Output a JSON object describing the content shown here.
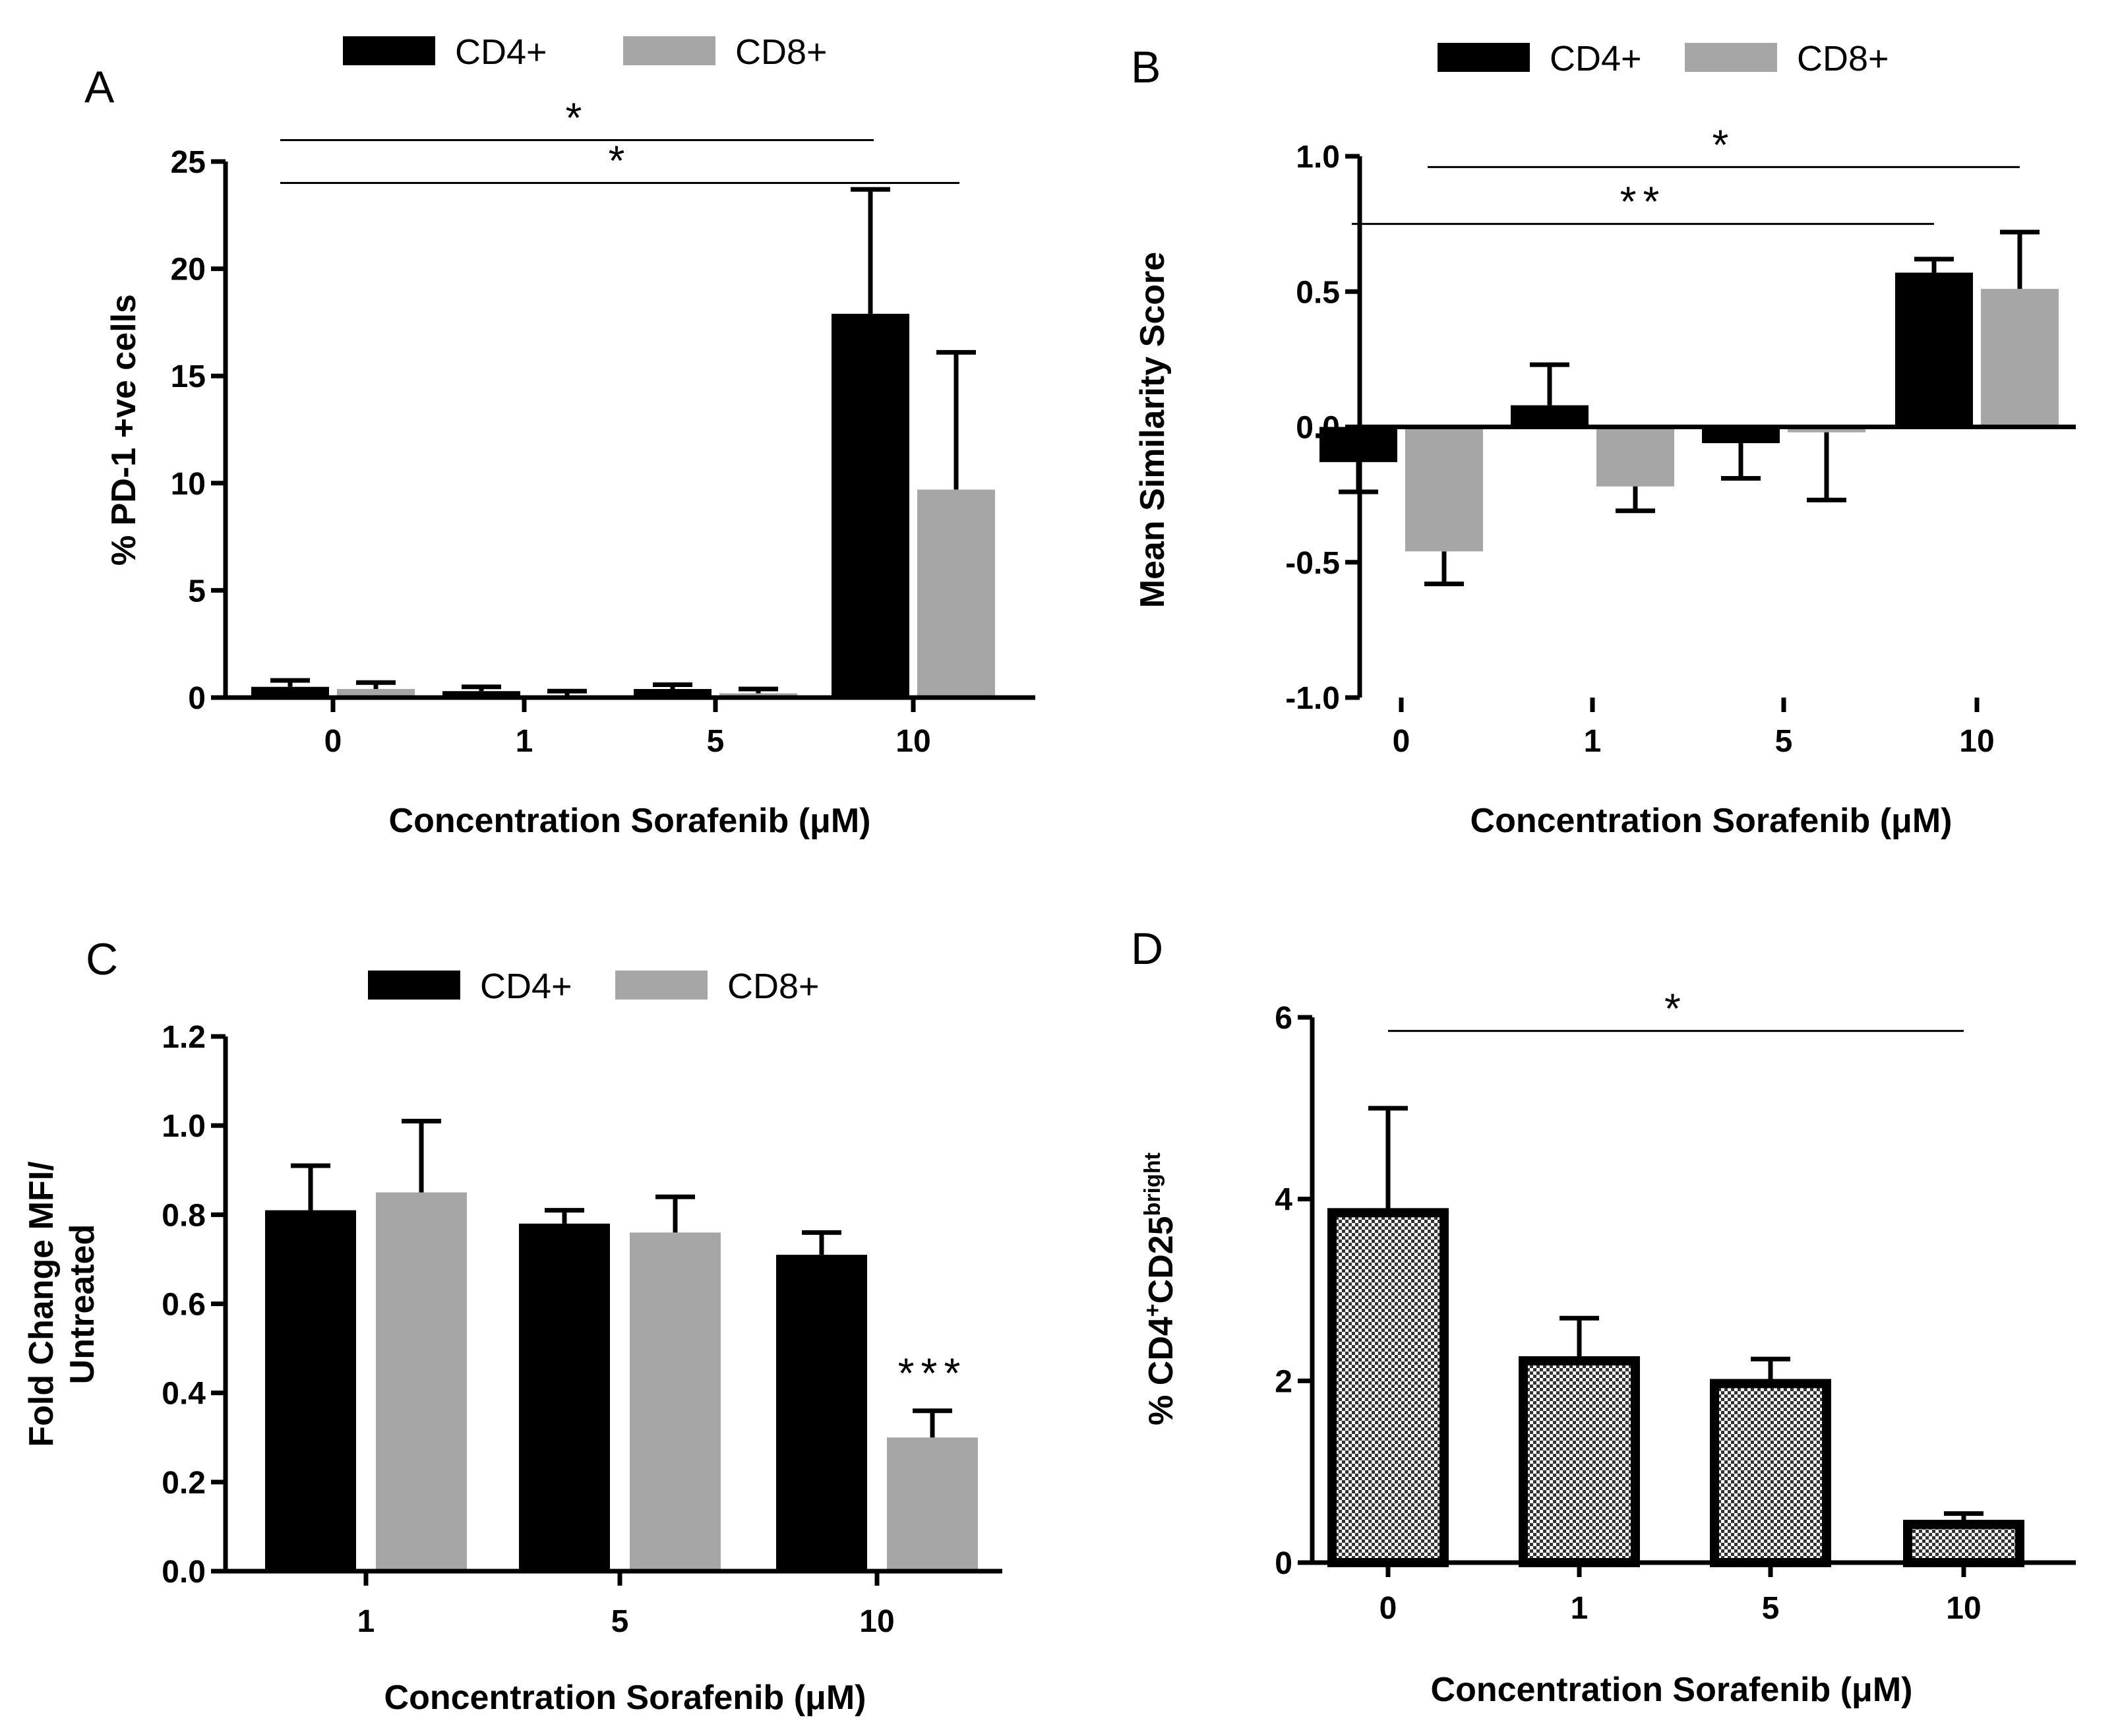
{
  "chart_data": [
    {
      "type": "bar",
      "panel": "A",
      "title": "",
      "xlabel": "Concentration Sorafenib (μM)",
      "ylabel": "% PD-1 +ve cells",
      "categories": [
        "0",
        "1",
        "5",
        "10"
      ],
      "ylim": [
        0,
        25
      ],
      "yticks": [
        0,
        5,
        10,
        15,
        20,
        25
      ],
      "ytick_labels": [
        "0",
        "5",
        "10",
        "15",
        "20",
        "25"
      ],
      "legend": "top",
      "series": [
        {
          "name": "CD4+",
          "color": "#000000",
          "values": [
            0.5,
            0.3,
            0.4,
            17.9
          ],
          "errors": [
            0.3,
            0.2,
            0.2,
            5.8
          ]
        },
        {
          "name": "CD8+",
          "color": "#a6a6a6",
          "values": [
            0.4,
            0.1,
            0.2,
            9.7
          ],
          "errors": [
            0.3,
            0.2,
            0.2,
            6.4
          ]
        }
      ],
      "significance": [
        {
          "label": "*",
          "from_group": 0,
          "to_group": 3,
          "to_series": 0,
          "level": 26.0
        },
        {
          "label": "*",
          "from_group": 0,
          "to_group": 3,
          "to_series": 1,
          "level": 24.0
        }
      ]
    },
    {
      "type": "bar",
      "panel": "B",
      "title": "",
      "xlabel": "Concentration Sorafenib (μM)",
      "ylabel": "Mean Similarity Score",
      "categories": [
        "0",
        "1",
        "5",
        "10"
      ],
      "ylim": [
        -1.0,
        1.0
      ],
      "yticks": [
        -1.0,
        -0.5,
        0.0,
        0.5,
        1.0
      ],
      "ytick_labels": [
        "-1.0",
        "-0.5",
        "0.0",
        "0.5",
        "1.0"
      ],
      "legend": "top",
      "series": [
        {
          "name": "CD4+",
          "color": "#000000",
          "values": [
            -0.13,
            0.08,
            -0.06,
            0.57
          ],
          "errors": [
            0.11,
            0.15,
            0.13,
            0.05
          ]
        },
        {
          "name": "CD8+",
          "color": "#a6a6a6",
          "values": [
            -0.46,
            -0.22,
            -0.02,
            0.51
          ],
          "errors": [
            0.12,
            0.09,
            0.25,
            0.21
          ]
        }
      ],
      "significance": [
        {
          "label": "*",
          "from_group": 0,
          "from_series": 1,
          "to_group": 3,
          "to_series": 1,
          "level": 0.96
        },
        {
          "label": "**",
          "from_group": 0,
          "from_series": 0,
          "to_group": 3,
          "to_series": 0,
          "level": 0.75
        }
      ]
    },
    {
      "type": "bar",
      "panel": "C",
      "title": "",
      "xlabel": "Concentration Sorafenib (μM)",
      "ylabel": [
        "Fold Change MFI/",
        "Untreated"
      ],
      "categories": [
        "1",
        "5",
        "10"
      ],
      "ylim": [
        0,
        1.2
      ],
      "yticks": [
        0.0,
        0.2,
        0.4,
        0.6,
        0.8,
        1.0,
        1.2
      ],
      "ytick_labels": [
        "0.0",
        "0.2",
        "0.4",
        "0.6",
        "0.8",
        "1.0",
        "1.2"
      ],
      "legend": "top",
      "series": [
        {
          "name": "CD4+",
          "color": "#000000",
          "values": [
            0.81,
            0.78,
            0.71
          ],
          "errors": [
            0.1,
            0.03,
            0.05
          ]
        },
        {
          "name": "CD8+",
          "color": "#a6a6a6",
          "values": [
            0.85,
            0.76,
            0.3
          ],
          "errors": [
            0.16,
            0.08,
            0.06
          ]
        }
      ],
      "annotations": [
        {
          "label": "***",
          "group": 2,
          "series": 1
        }
      ]
    },
    {
      "type": "bar",
      "panel": "D",
      "title": "",
      "xlabel": "Concentration Sorafenib (μM)",
      "ylabel": {
        "base": "% CD4",
        "sup1": "+",
        "mid": "CD25",
        "sup2": "bright"
      },
      "categories": [
        "0",
        "1",
        "5",
        "10"
      ],
      "ylim": [
        0,
        6
      ],
      "yticks": [
        0,
        2,
        4,
        6
      ],
      "ytick_labels": [
        "0",
        "2",
        "4",
        "6"
      ],
      "pattern": "checkered",
      "series": [
        {
          "name": "CD4+CD25bright",
          "color": "#777777",
          "values": [
            3.85,
            2.22,
            1.97,
            0.42
          ],
          "errors": [
            1.15,
            0.47,
            0.27,
            0.12
          ]
        }
      ],
      "significance": [
        {
          "label": "*",
          "from_group": 0,
          "to_group": 3,
          "level": 5.85
        }
      ]
    }
  ]
}
